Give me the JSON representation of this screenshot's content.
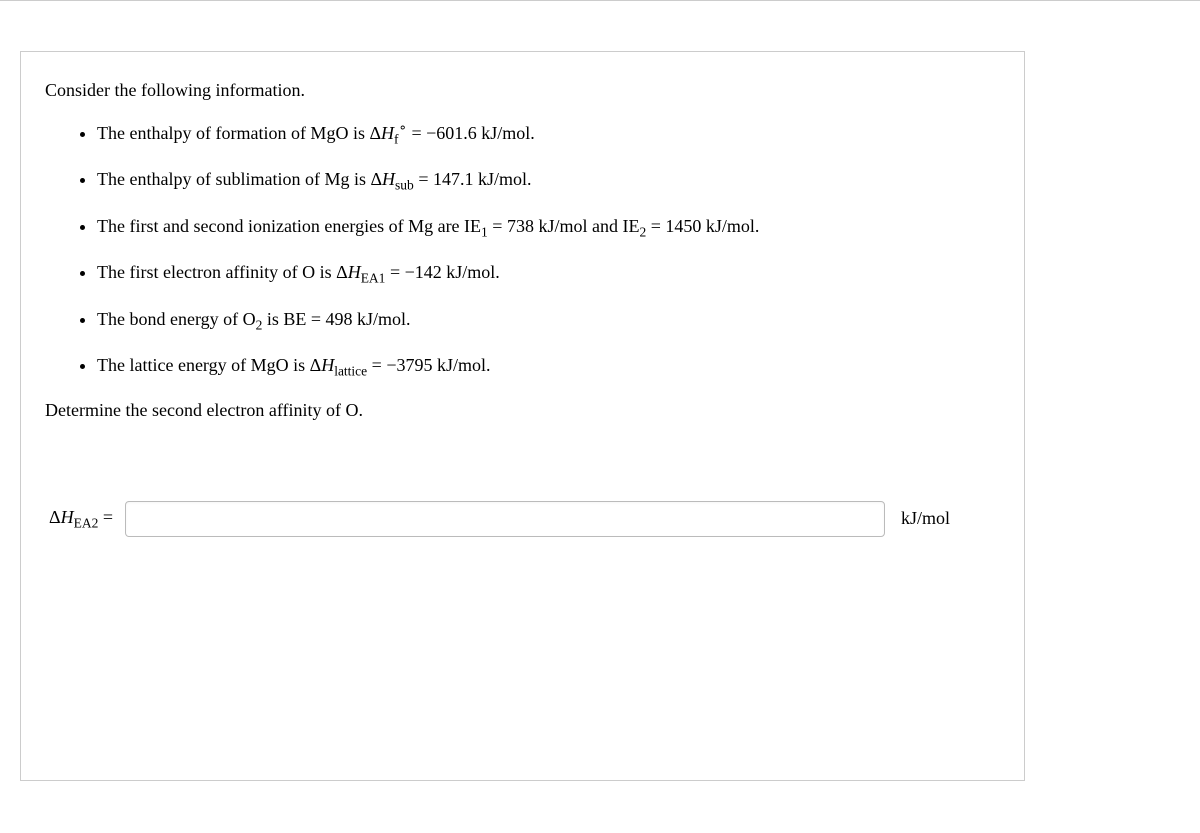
{
  "intro": "Consider the following information.",
  "bullets": [
    {
      "pre": "The enthalpy of formation of MgO is Δ",
      "symSub": "f",
      "symSup": "∘",
      "sym": "H",
      "post": " = −601.6 kJ/mol."
    },
    {
      "pre": "The enthalpy of sublimation of Mg is Δ",
      "symSub": "sub",
      "symSup": "",
      "sym": "H",
      "post": " = 147.1 kJ/mol."
    },
    {
      "pre": "The first and second ionization energies of Mg are IE",
      "symSub": "1",
      "symSup": "",
      "sym": "",
      "post": " = 738 kJ/mol and IE",
      "tailSub": "2",
      "tail": " = 1450 kJ/mol."
    },
    {
      "pre": "The first electron affinity of O is Δ",
      "symSub": "EA1",
      "symSup": "",
      "sym": "H",
      "post": " = −142 kJ/mol."
    },
    {
      "pre": "The bond energy of O",
      "symSub": "2",
      "symSup": "",
      "sym": "",
      "post": " is BE = 498 kJ/mol."
    },
    {
      "pre": "The lattice energy of MgO is Δ",
      "symSub": "lattice",
      "symSup": "",
      "sym": "H",
      "post": " = −3795 kJ/mol."
    }
  ],
  "prompt": "Determine the second electron affinity of O.",
  "answer": {
    "labelPrefix": "Δ",
    "labelSym": "H",
    "labelSub": "EA2",
    "labelEquals": " =",
    "unit": "kJ/mol",
    "value": ""
  }
}
